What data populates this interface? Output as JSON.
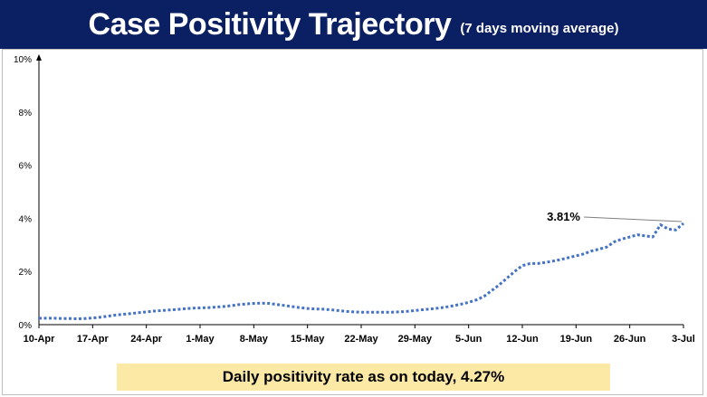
{
  "header": {
    "title": "Case Positivity Trajectory",
    "subtitle": "(7 days moving average)"
  },
  "banner": {
    "text": "Daily positivity rate as on today, 4.27%"
  },
  "colors": {
    "header_bg": "#0b1f63",
    "line": "#4472c4",
    "banner_bg": "#fde9a6"
  },
  "chart_data": {
    "type": "line",
    "title": "Case Positivity Trajectory",
    "subtitle": "(7 days moving average)",
    "ylim": [
      0,
      10
    ],
    "yticks": [
      0,
      2,
      4,
      6,
      8,
      10
    ],
    "ytick_labels": [
      "0%",
      "2%",
      "4%",
      "6%",
      "8%",
      "10%"
    ],
    "xlim": [
      0,
      84
    ],
    "xticks": [
      0,
      7,
      14,
      21,
      28,
      35,
      42,
      49,
      56,
      63,
      70,
      77,
      84
    ],
    "xtick_labels": [
      "10-Apr",
      "17-Apr",
      "24-Apr",
      "1-May",
      "8-May",
      "15-May",
      "22-May",
      "29-May",
      "5-Jun",
      "12-Jun",
      "19-Jun",
      "26-Jun",
      "3-Jul"
    ],
    "grid": false,
    "legend": "none",
    "series": [
      {
        "name": "7 days moving average positivity (%)",
        "x": [
          0,
          1,
          2,
          3,
          4,
          5,
          6,
          7,
          8,
          9,
          10,
          11,
          12,
          13,
          14,
          15,
          16,
          17,
          18,
          19,
          20,
          21,
          22,
          23,
          24,
          25,
          26,
          27,
          28,
          29,
          30,
          31,
          32,
          33,
          34,
          35,
          36,
          37,
          38,
          39,
          40,
          41,
          42,
          43,
          44,
          45,
          46,
          47,
          48,
          49,
          50,
          51,
          52,
          53,
          54,
          55,
          56,
          57,
          58,
          59,
          60,
          61,
          62,
          63,
          64,
          65,
          66,
          67,
          68,
          69,
          70,
          71,
          72,
          73,
          74,
          75,
          76,
          77,
          78,
          79,
          80,
          81,
          82,
          83,
          84
        ],
        "values": [
          0.24,
          0.24,
          0.24,
          0.23,
          0.23,
          0.22,
          0.23,
          0.25,
          0.28,
          0.32,
          0.36,
          0.39,
          0.42,
          0.45,
          0.48,
          0.51,
          0.53,
          0.55,
          0.57,
          0.6,
          0.62,
          0.63,
          0.64,
          0.66,
          0.68,
          0.71,
          0.75,
          0.78,
          0.8,
          0.81,
          0.8,
          0.76,
          0.72,
          0.68,
          0.64,
          0.61,
          0.59,
          0.58,
          0.56,
          0.53,
          0.5,
          0.48,
          0.47,
          0.47,
          0.47,
          0.47,
          0.47,
          0.48,
          0.5,
          0.53,
          0.56,
          0.59,
          0.62,
          0.66,
          0.71,
          0.77,
          0.84,
          0.93,
          1.06,
          1.28,
          1.5,
          1.75,
          2.0,
          2.22,
          2.3,
          2.3,
          2.34,
          2.39,
          2.45,
          2.52,
          2.59,
          2.66,
          2.77,
          2.84,
          2.92,
          3.12,
          3.22,
          3.3,
          3.38,
          3.34,
          3.3,
          3.76,
          3.6,
          3.56,
          3.81
        ]
      }
    ],
    "annotations": [
      {
        "text": "3.81%",
        "x": 84,
        "y": 3.81
      }
    ]
  }
}
